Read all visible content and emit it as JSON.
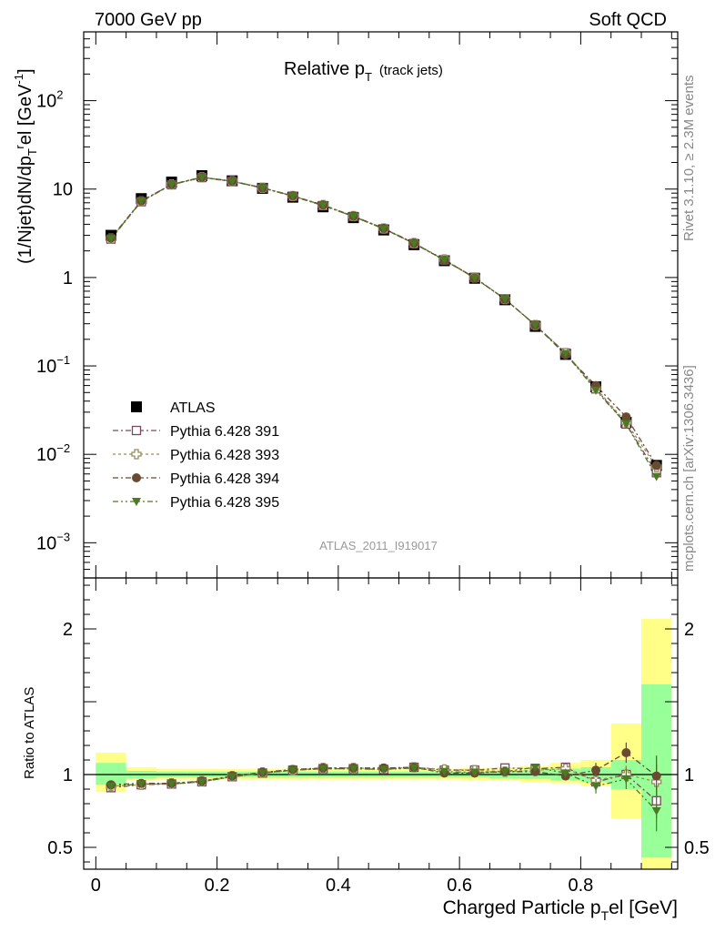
{
  "header": {
    "left": "7000 GeV pp",
    "right": "Soft QCD"
  },
  "side_texts": {
    "rivet": "Rivet 3.1.10, ≥ 2.3M events",
    "mcplots": "mcplots.cern.ch [arXiv:1306.3436]"
  },
  "chart_data": [
    {
      "type": "scatter",
      "title_main": "Relative p",
      "title_sub": "T",
      "title_note": "(track jets)",
      "ylabel_main": "(1/Njet)dN/dp",
      "ylabel_sub": "T",
      "ylabel_sup": "r",
      "ylabel_tail": "el [GeV",
      "ylabel_unit_sup": "-1",
      "ylabel_close": "]",
      "analysis_label": "ATLAS_2011_I919017",
      "yscale": "log",
      "ylim": [
        0.0004,
        600
      ],
      "xlim": [
        -0.02,
        0.96
      ],
      "ytick_labels": [
        {
          "value": 0.001,
          "base": "10",
          "exp": "−3"
        },
        {
          "value": 0.01,
          "base": "10",
          "exp": "−2"
        },
        {
          "value": 0.1,
          "base": "10",
          "exp": "−1"
        },
        {
          "value": 1,
          "base": "1",
          "exp": ""
        },
        {
          "value": 10,
          "base": "10",
          "exp": ""
        },
        {
          "value": 100,
          "base": "10",
          "exp": "2"
        }
      ],
      "legend_position": "bottom-left",
      "x": [
        0.025,
        0.075,
        0.125,
        0.175,
        0.225,
        0.275,
        0.325,
        0.375,
        0.425,
        0.475,
        0.525,
        0.575,
        0.625,
        0.675,
        0.725,
        0.775,
        0.825,
        0.875,
        0.925
      ],
      "series": [
        {
          "name": "ATLAS",
          "color": "#000000",
          "marker": "square-filled",
          "values": [
            3.0,
            7.8,
            12.0,
            14.2,
            12.4,
            10.2,
            8.1,
            6.3,
            4.75,
            3.45,
            2.35,
            1.55,
            0.98,
            0.56,
            0.28,
            0.135,
            0.058,
            0.023,
            0.0075
          ]
        },
        {
          "name": "Pythia 6.428 391",
          "color": "#7a4a5a",
          "marker": "square-open",
          "values": [
            2.72,
            7.2,
            11.2,
            13.5,
            12.2,
            10.3,
            8.3,
            6.5,
            4.9,
            3.55,
            2.42,
            1.58,
            1.0,
            0.57,
            0.29,
            0.14,
            0.055,
            0.022,
            0.0062
          ]
        },
        {
          "name": "Pythia 6.428 393",
          "color": "#9a8a5a",
          "marker": "cross-open",
          "values": [
            2.76,
            7.25,
            11.3,
            13.6,
            12.3,
            10.35,
            8.35,
            6.6,
            4.95,
            3.58,
            2.45,
            1.6,
            1.0,
            0.57,
            0.29,
            0.14,
            0.056,
            0.023,
            0.0072
          ]
        },
        {
          "name": "Pythia 6.428 394",
          "color": "#6b4a32",
          "marker": "circle-filled",
          "values": [
            2.8,
            7.35,
            11.3,
            13.6,
            12.3,
            10.35,
            8.4,
            6.6,
            4.95,
            3.6,
            2.45,
            1.57,
            0.99,
            0.57,
            0.29,
            0.134,
            0.06,
            0.0265,
            0.0075
          ]
        },
        {
          "name": "Pythia 6.428 395",
          "color": "#4a7a22",
          "marker": "triangle-down-filled",
          "values": [
            2.75,
            7.3,
            11.25,
            13.55,
            12.25,
            10.3,
            8.35,
            6.55,
            4.9,
            3.55,
            2.43,
            1.57,
            0.99,
            0.57,
            0.29,
            0.138,
            0.053,
            0.022,
            0.0056
          ]
        }
      ]
    },
    {
      "type": "scatter",
      "ylabel": "Ratio to ATLAS",
      "xlabel_main": "Charged Particle p",
      "xlabel_sub": "T",
      "xlabel_tail": "el [GeV]",
      "ylim": [
        0.35,
        2.35
      ],
      "xlim": [
        -0.02,
        0.96
      ],
      "yticks": [
        0.5,
        1,
        2
      ],
      "ytick_labels": [
        "0.5",
        "1",
        "2"
      ],
      "xticks": [
        0,
        0.2,
        0.4,
        0.6,
        0.8
      ],
      "xtick_labels": [
        "0",
        "0.2",
        "0.4",
        "0.6",
        "0.8"
      ],
      "bands": {
        "bin_edges": [
          0.0,
          0.05,
          0.1,
          0.15,
          0.2,
          0.25,
          0.3,
          0.35,
          0.4,
          0.45,
          0.5,
          0.55,
          0.6,
          0.65,
          0.7,
          0.75,
          0.8,
          0.85,
          0.9,
          0.95
        ],
        "inner_color": "#99ff99",
        "outer_color": "#ffff88",
        "inner": [
          [
            0.93,
            1.08
          ],
          [
            0.975,
            1.025
          ],
          [
            0.98,
            1.02
          ],
          [
            0.98,
            1.02
          ],
          [
            0.98,
            1.02
          ],
          [
            0.98,
            1.02
          ],
          [
            0.98,
            1.02
          ],
          [
            0.98,
            1.02
          ],
          [
            0.98,
            1.02
          ],
          [
            0.98,
            1.02
          ],
          [
            0.98,
            1.02
          ],
          [
            0.98,
            1.02
          ],
          [
            0.98,
            1.02
          ],
          [
            0.975,
            1.025
          ],
          [
            0.97,
            1.03
          ],
          [
            0.96,
            1.04
          ],
          [
            0.95,
            1.05
          ],
          [
            0.9,
            1.1
          ],
          [
            0.43,
            1.62
          ]
        ],
        "outer": [
          [
            0.88,
            1.15
          ],
          [
            0.96,
            1.05
          ],
          [
            0.965,
            1.04
          ],
          [
            0.965,
            1.04
          ],
          [
            0.965,
            1.04
          ],
          [
            0.965,
            1.04
          ],
          [
            0.965,
            1.04
          ],
          [
            0.965,
            1.04
          ],
          [
            0.965,
            1.04
          ],
          [
            0.965,
            1.04
          ],
          [
            0.965,
            1.04
          ],
          [
            0.965,
            1.04
          ],
          [
            0.96,
            1.045
          ],
          [
            0.96,
            1.05
          ],
          [
            0.95,
            1.06
          ],
          [
            0.94,
            1.08
          ],
          [
            0.92,
            1.1
          ],
          [
            0.7,
            1.35
          ],
          [
            0.35,
            2.07
          ]
        ]
      },
      "x": [
        0.025,
        0.075,
        0.125,
        0.175,
        0.225,
        0.275,
        0.325,
        0.375,
        0.425,
        0.475,
        0.525,
        0.575,
        0.625,
        0.675,
        0.725,
        0.775,
        0.825,
        0.875,
        0.925
      ],
      "series": [
        {
          "name": "Pythia 6.428 391",
          "color": "#7a4a5a",
          "marker": "square-open",
          "values": [
            0.91,
            0.93,
            0.935,
            0.95,
            0.985,
            1.01,
            1.03,
            1.04,
            1.04,
            1.035,
            1.05,
            1.03,
            1.03,
            1.045,
            1.04,
            1.05,
            0.95,
            1.0,
            0.82
          ],
          "errors": [
            0.01,
            0.01,
            0.01,
            0.01,
            0.01,
            0.01,
            0.01,
            0.01,
            0.01,
            0.01,
            0.01,
            0.012,
            0.015,
            0.015,
            0.02,
            0.03,
            0.05,
            0.06,
            0.12
          ]
        },
        {
          "name": "Pythia 6.428 393",
          "color": "#9a8a5a",
          "marker": "cross-open",
          "values": [
            0.92,
            0.93,
            0.94,
            0.955,
            0.99,
            1.015,
            1.03,
            1.045,
            1.045,
            1.04,
            1.05,
            1.035,
            1.03,
            1.02,
            1.03,
            1.04,
            0.96,
            1.0,
            0.95
          ],
          "errors": [
            0.01,
            0.01,
            0.01,
            0.01,
            0.01,
            0.01,
            0.01,
            0.01,
            0.01,
            0.01,
            0.01,
            0.012,
            0.015,
            0.015,
            0.02,
            0.03,
            0.05,
            0.06,
            0.12
          ]
        },
        {
          "name": "Pythia 6.428 394",
          "color": "#6b4a32",
          "marker": "circle-filled",
          "values": [
            0.93,
            0.94,
            0.94,
            0.955,
            0.99,
            1.015,
            1.035,
            1.045,
            1.045,
            1.045,
            1.05,
            1.01,
            1.01,
            1.02,
            1.02,
            0.99,
            1.03,
            1.15,
            0.99
          ],
          "errors": [
            0.01,
            0.01,
            0.01,
            0.01,
            0.01,
            0.01,
            0.01,
            0.01,
            0.01,
            0.01,
            0.01,
            0.012,
            0.015,
            0.015,
            0.02,
            0.03,
            0.05,
            0.07,
            0.14
          ]
        },
        {
          "name": "Pythia 6.428 395",
          "color": "#4a7a22",
          "marker": "triangle-down-filled",
          "values": [
            0.92,
            0.935,
            0.935,
            0.95,
            0.985,
            1.01,
            1.03,
            1.04,
            1.04,
            1.035,
            1.045,
            1.02,
            1.015,
            1.02,
            1.05,
            1.01,
            0.92,
            0.97,
            0.75
          ],
          "errors": [
            0.01,
            0.01,
            0.01,
            0.01,
            0.01,
            0.01,
            0.01,
            0.01,
            0.01,
            0.01,
            0.01,
            0.012,
            0.015,
            0.015,
            0.02,
            0.03,
            0.05,
            0.07,
            0.14
          ]
        }
      ]
    }
  ]
}
